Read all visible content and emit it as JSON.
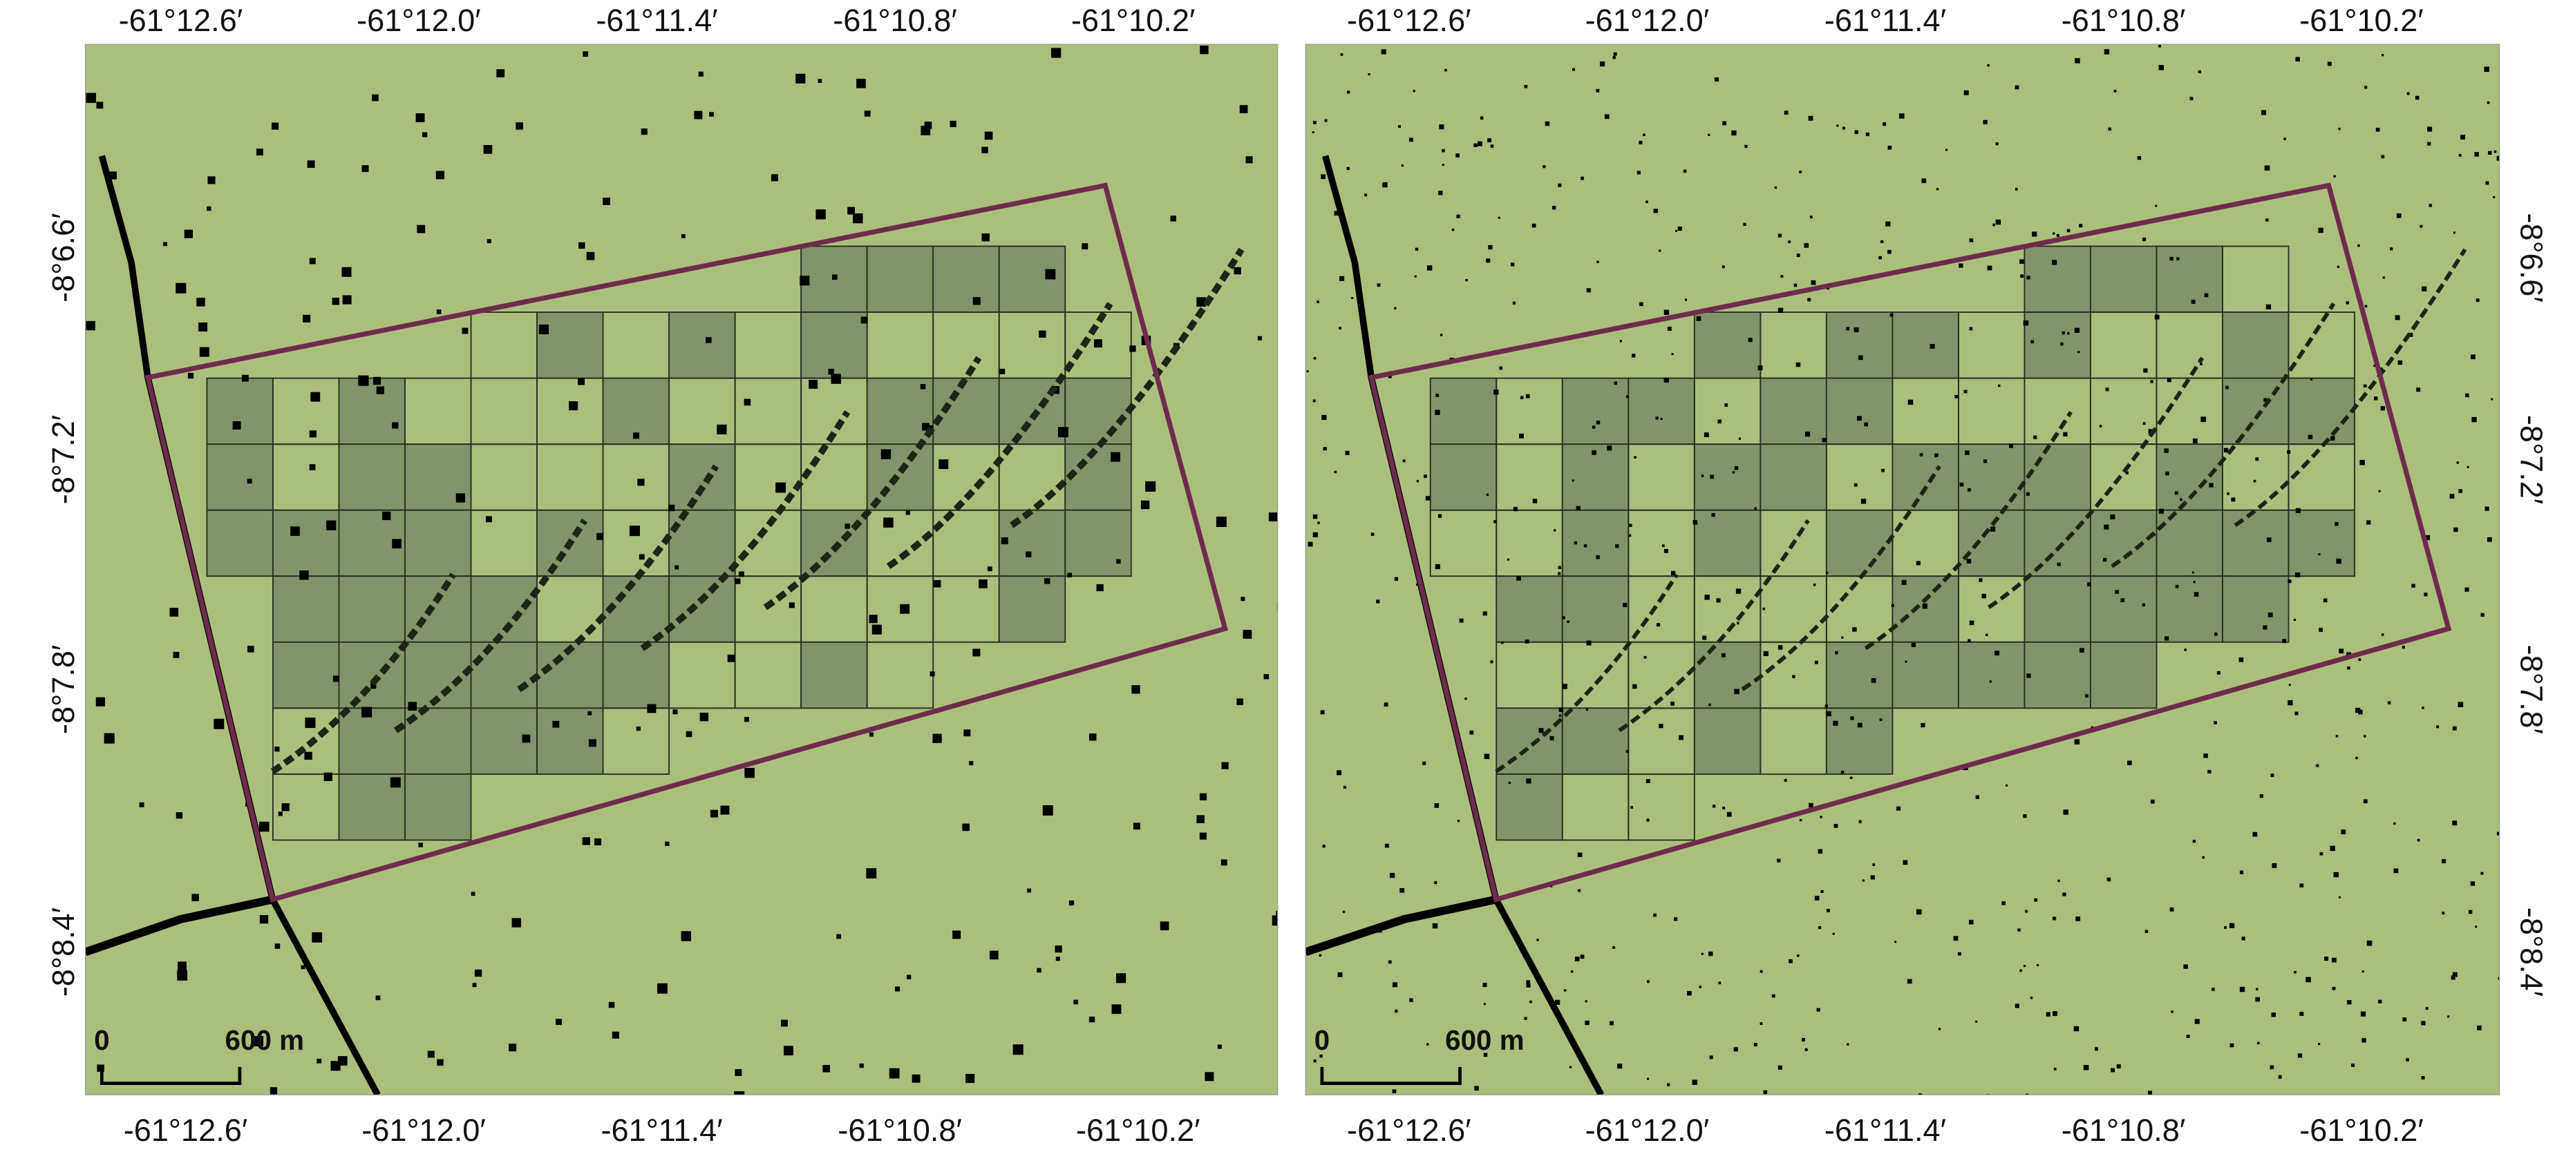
{
  "panels": [
    {
      "lon_labels_top": [
        "-61°12.6′",
        "-61°12.0′",
        "-61°11.4′",
        "-61°10.8′",
        "-61°10.2′"
      ],
      "lon_labels_bottom": [
        "-61°12.6′",
        "-61°12.0′",
        "-61°11.4′",
        "-61°10.8′",
        "-61°10.2′"
      ],
      "lat_labels": [
        "-8°6.6′",
        "-8°7.2′",
        "-8°7.8′",
        "-8°8.4′"
      ],
      "scale_bar": {
        "start": "0",
        "end": "600 m"
      }
    },
    {
      "lon_labels_top": [
        "-61°12.6′",
        "-61°12.0′",
        "-61°11.4′",
        "-61°10.8′",
        "-61°10.2′"
      ],
      "lon_labels_bottom": [
        "-61°12.6′",
        "-61°12.0′",
        "-61°11.4′",
        "-61°10.8′",
        "-61°10.2′"
      ],
      "lat_labels": [
        "-8°6.6′",
        "-8°7.2′",
        "-8°7.8′",
        "-8°8.4′"
      ],
      "scale_bar": {
        "start": "0",
        "end": "600 m"
      }
    }
  ]
}
